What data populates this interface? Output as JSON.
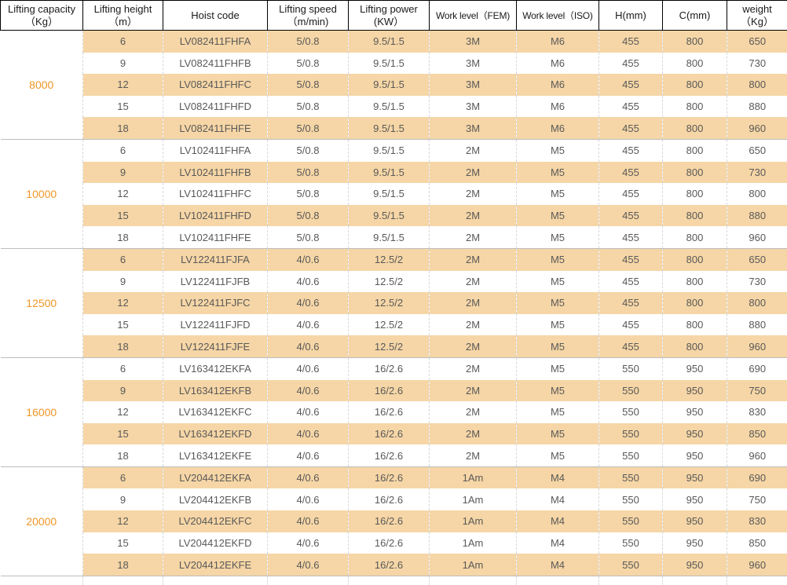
{
  "colors": {
    "header_text": "#1a1a1a",
    "header_border": "#000000",
    "body_text": "#595959",
    "row_highlight": "#f6d6a6",
    "row_plain": "#ffffff",
    "capacity_text": "#ef9626",
    "group_divider": "#bdbdbd",
    "column_divider": "#d9d9d9"
  },
  "table": {
    "columns": [
      "Lifting capacity\n（Kg）",
      "Lifting height\n（m）",
      "Hoist code",
      "Lifting speed\n（m/min)",
      "Lifting power\n(KW）",
      "Work level（FEM)",
      "Work level（ISO)",
      "H(mm)",
      "C(mm)",
      "weight\n（Kg）"
    ],
    "fields": [
      "height",
      "code",
      "speed",
      "power",
      "fem",
      "iso",
      "h",
      "c",
      "weight"
    ],
    "groups": [
      {
        "capacity": "8000",
        "rows": [
          {
            "height": "6",
            "code": "LV082411FHFA",
            "speed": "5/0.8",
            "power": "9.5/1.5",
            "fem": "3M",
            "iso": "M6",
            "h": "455",
            "c": "800",
            "weight": "650"
          },
          {
            "height": "9",
            "code": "LV082411FHFB",
            "speed": "5/0.8",
            "power": "9.5/1.5",
            "fem": "3M",
            "iso": "M6",
            "h": "455",
            "c": "800",
            "weight": "730"
          },
          {
            "height": "12",
            "code": "LV082411FHFC",
            "speed": "5/0.8",
            "power": "9.5/1.5",
            "fem": "3M",
            "iso": "M6",
            "h": "455",
            "c": "800",
            "weight": "800"
          },
          {
            "height": "15",
            "code": "LV082411FHFD",
            "speed": "5/0.8",
            "power": "9.5/1.5",
            "fem": "3M",
            "iso": "M6",
            "h": "455",
            "c": "800",
            "weight": "880"
          },
          {
            "height": "18",
            "code": "LV082411FHFE",
            "speed": "5/0.8",
            "power": "9.5/1.5",
            "fem": "3M",
            "iso": "M6",
            "h": "455",
            "c": "800",
            "weight": "960"
          }
        ]
      },
      {
        "capacity": "10000",
        "rows": [
          {
            "height": "6",
            "code": "LV102411FHFA",
            "speed": "5/0.8",
            "power": "9.5/1.5",
            "fem": "2M",
            "iso": "M5",
            "h": "455",
            "c": "800",
            "weight": "650"
          },
          {
            "height": "9",
            "code": "LV102411FHFB",
            "speed": "5/0.8",
            "power": "9.5/1.5",
            "fem": "2M",
            "iso": "M5",
            "h": "455",
            "c": "800",
            "weight": "730"
          },
          {
            "height": "12",
            "code": "LV102411FHFC",
            "speed": "5/0.8",
            "power": "9.5/1.5",
            "fem": "2M",
            "iso": "M5",
            "h": "455",
            "c": "800",
            "weight": "800"
          },
          {
            "height": "15",
            "code": "LV102411FHFD",
            "speed": "5/0.8",
            "power": "9.5/1.5",
            "fem": "2M",
            "iso": "M5",
            "h": "455",
            "c": "800",
            "weight": "880"
          },
          {
            "height": "18",
            "code": "LV102411FHFE",
            "speed": "5/0.8",
            "power": "9.5/1.5",
            "fem": "2M",
            "iso": "M5",
            "h": "455",
            "c": "800",
            "weight": "960"
          }
        ]
      },
      {
        "capacity": "12500",
        "rows": [
          {
            "height": "6",
            "code": "LV122411FJFA",
            "speed": "4/0.6",
            "power": "12.5/2",
            "fem": "2M",
            "iso": "M5",
            "h": "455",
            "c": "800",
            "weight": "650"
          },
          {
            "height": "9",
            "code": "LV122411FJFB",
            "speed": "4/0.6",
            "power": "12.5/2",
            "fem": "2M",
            "iso": "M5",
            "h": "455",
            "c": "800",
            "weight": "730"
          },
          {
            "height": "12",
            "code": "LV122411FJFC",
            "speed": "4/0.6",
            "power": "12.5/2",
            "fem": "2M",
            "iso": "M5",
            "h": "455",
            "c": "800",
            "weight": "800"
          },
          {
            "height": "15",
            "code": "LV122411FJFD",
            "speed": "4/0.6",
            "power": "12.5/2",
            "fem": "2M",
            "iso": "M5",
            "h": "455",
            "c": "800",
            "weight": "880"
          },
          {
            "height": "18",
            "code": "LV122411FJFE",
            "speed": "4/0.6",
            "power": "12.5/2",
            "fem": "2M",
            "iso": "M5",
            "h": "455",
            "c": "800",
            "weight": "960"
          }
        ]
      },
      {
        "capacity": "16000",
        "rows": [
          {
            "height": "6",
            "code": "LV163412EKFA",
            "speed": "4/0.6",
            "power": "16/2.6",
            "fem": "2M",
            "iso": "M5",
            "h": "550",
            "c": "950",
            "weight": "690"
          },
          {
            "height": "9",
            "code": "LV163412EKFB",
            "speed": "4/0.6",
            "power": "16/2.6",
            "fem": "2M",
            "iso": "M5",
            "h": "550",
            "c": "950",
            "weight": "750"
          },
          {
            "height": "12",
            "code": "LV163412EKFC",
            "speed": "4/0.6",
            "power": "16/2.6",
            "fem": "2M",
            "iso": "M5",
            "h": "550",
            "c": "950",
            "weight": "830"
          },
          {
            "height": "15",
            "code": "LV163412EKFD",
            "speed": "4/0.6",
            "power": "16/2.6",
            "fem": "2M",
            "iso": "M5",
            "h": "550",
            "c": "950",
            "weight": "850"
          },
          {
            "height": "18",
            "code": "LV163412EKFE",
            "speed": "4/0.6",
            "power": "16/2.6",
            "fem": "2M",
            "iso": "M5",
            "h": "550",
            "c": "950",
            "weight": "960"
          }
        ]
      },
      {
        "capacity": "20000",
        "rows": [
          {
            "height": "6",
            "code": "LV204412EKFA",
            "speed": "4/0.6",
            "power": "16/2.6",
            "fem": "1Am",
            "iso": "M4",
            "h": "550",
            "c": "950",
            "weight": "690"
          },
          {
            "height": "9",
            "code": "LV204412EKFB",
            "speed": "4/0.6",
            "power": "16/2.6",
            "fem": "1Am",
            "iso": "M4",
            "h": "550",
            "c": "950",
            "weight": "750"
          },
          {
            "height": "12",
            "code": "LV204412EKFC",
            "speed": "4/0.6",
            "power": "16/2.6",
            "fem": "1Am",
            "iso": "M4",
            "h": "550",
            "c": "950",
            "weight": "830"
          },
          {
            "height": "15",
            "code": "LV204412EKFD",
            "speed": "4/0.6",
            "power": "16/2.6",
            "fem": "1Am",
            "iso": "M4",
            "h": "550",
            "c": "950",
            "weight": "850"
          },
          {
            "height": "18",
            "code": "LV204412EKFE",
            "speed": "4/0.6",
            "power": "16/2.6",
            "fem": "1Am",
            "iso": "M4",
            "h": "550",
            "c": "950",
            "weight": "960"
          }
        ]
      }
    ]
  }
}
